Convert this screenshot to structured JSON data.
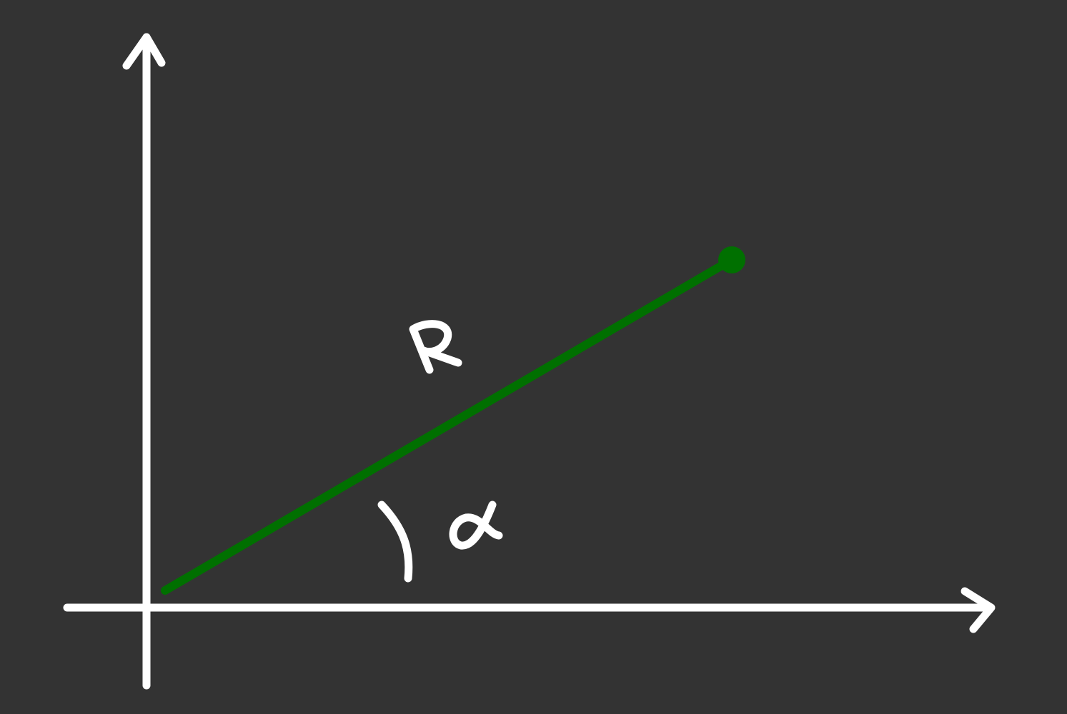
{
  "diagram": {
    "background_color": "#333333",
    "axis_color": "#ffffff",
    "vector_color": "#007000",
    "vector_label": "R",
    "angle_label": "α"
  }
}
